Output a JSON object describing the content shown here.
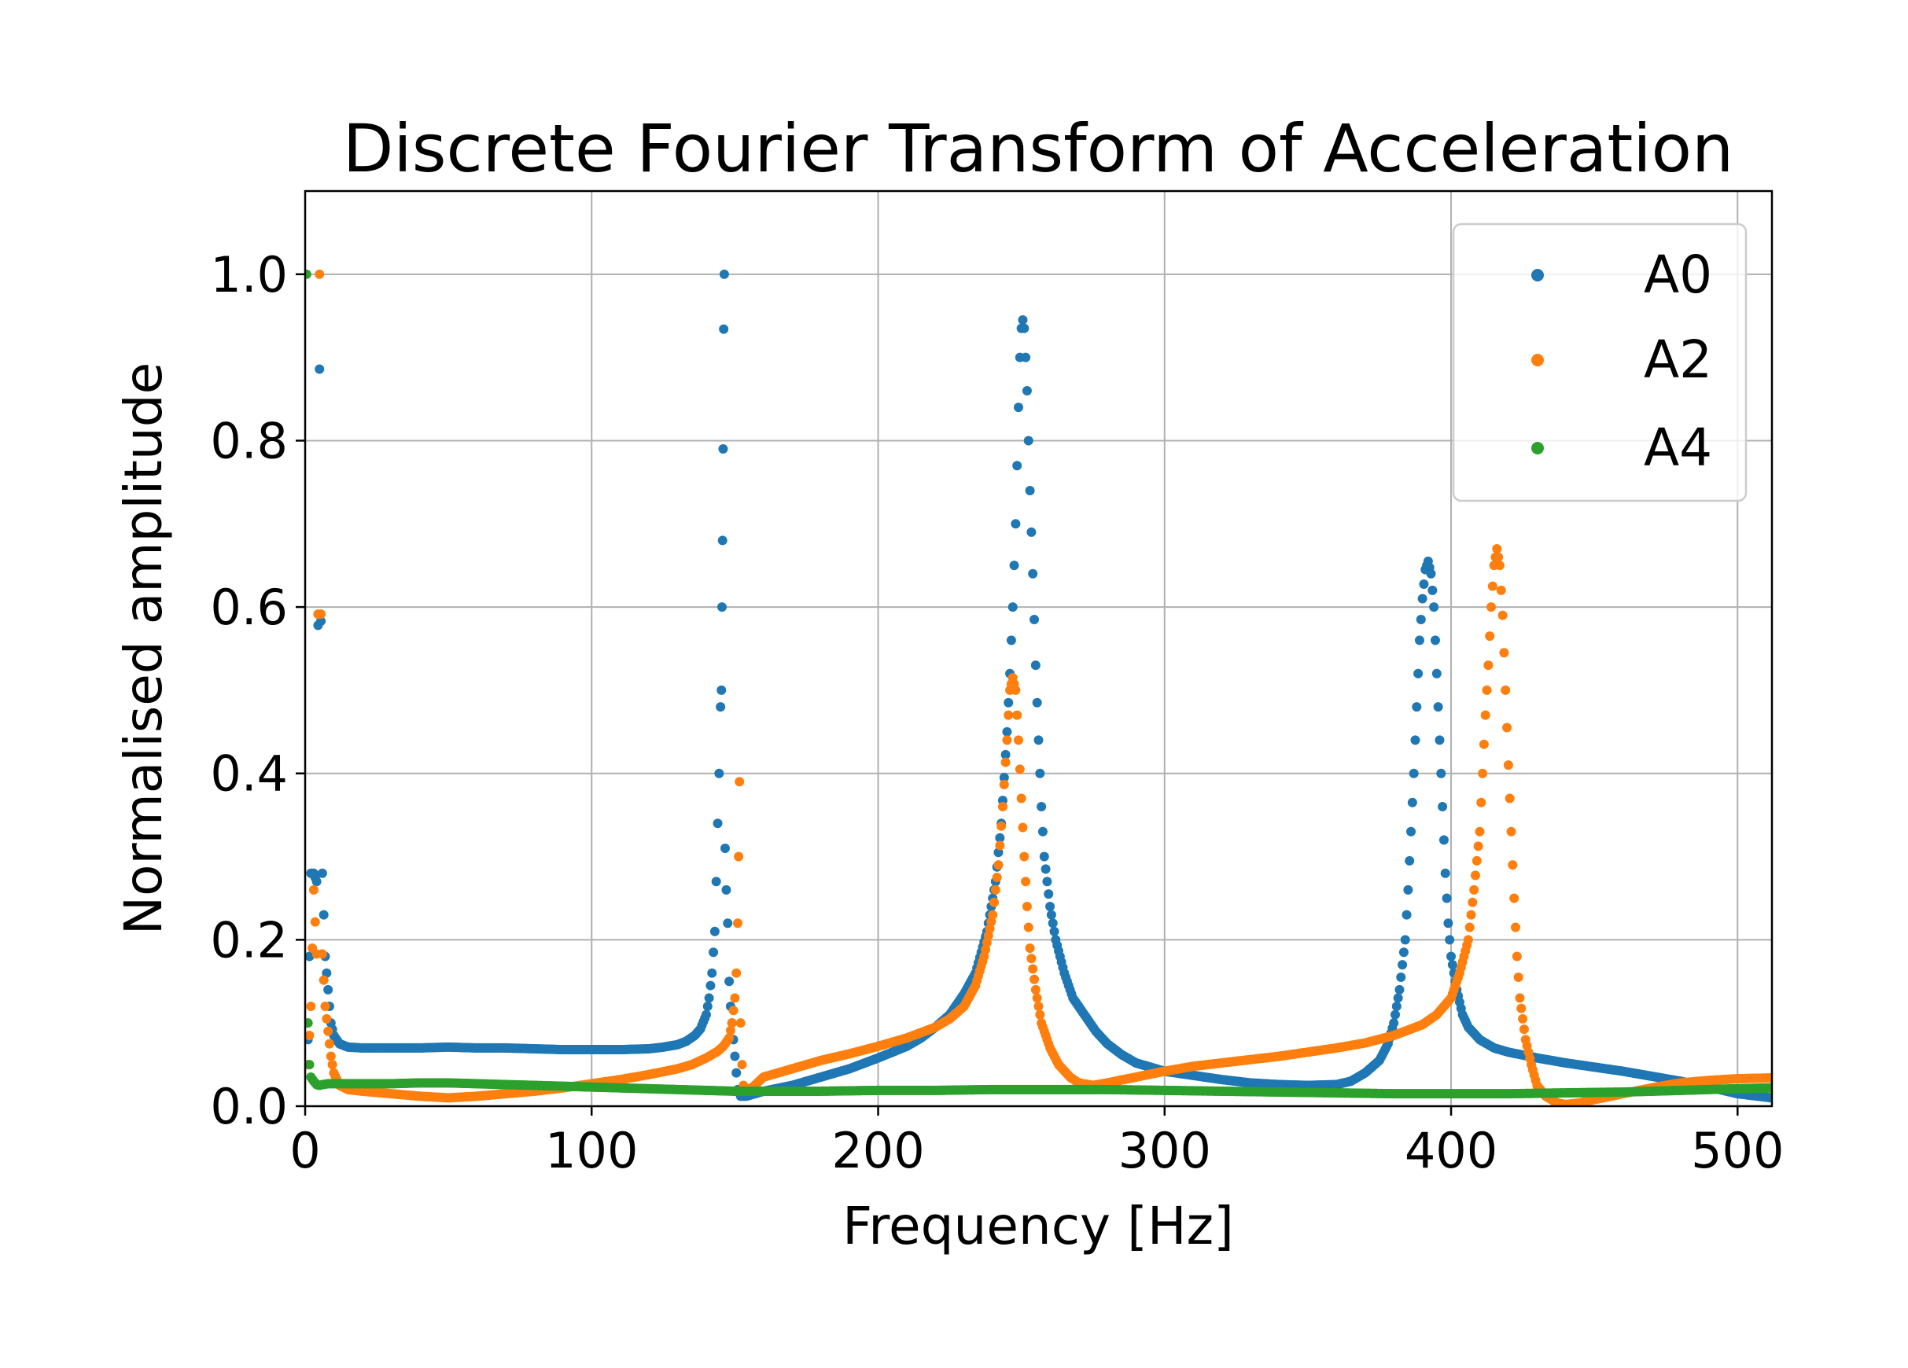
{
  "chart_data": {
    "type": "scatter",
    "title": "Discrete Fourier Transform of Acceleration",
    "xlabel": "Frequency [Hz]",
    "ylabel": "Normalised amplitude",
    "xlim": [
      0,
      512
    ],
    "ylim": [
      0,
      1.1
    ],
    "x_ticks": [
      0,
      100,
      200,
      300,
      400,
      500
    ],
    "x_tick_labels": [
      "0",
      "100",
      "200",
      "300",
      "400",
      "500"
    ],
    "y_ticks": [
      0,
      0.2,
      0.4,
      0.6,
      0.8,
      1.0
    ],
    "y_tick_labels": [
      "0.0",
      "0.2",
      "0.4",
      "0.6",
      "0.8",
      "1.0"
    ],
    "grid": true,
    "legend_position": "top-right",
    "series": [
      {
        "name": "A0",
        "color": "#1f77b4",
        "points": [
          [
            1,
            0.08
          ],
          [
            2,
            0.28
          ],
          [
            3,
            0.28
          ],
          [
            4,
            0.27
          ],
          [
            5,
            0.886
          ],
          [
            6,
            0.28
          ],
          [
            7,
            0.18
          ],
          [
            8,
            0.14
          ],
          [
            9,
            0.1
          ],
          [
            10,
            0.085
          ],
          [
            12,
            0.075
          ],
          [
            15,
            0.071
          ],
          [
            20,
            0.07
          ],
          [
            30,
            0.07
          ],
          [
            40,
            0.07
          ],
          [
            50,
            0.071
          ],
          [
            60,
            0.07
          ],
          [
            70,
            0.07
          ],
          [
            80,
            0.069
          ],
          [
            90,
            0.068
          ],
          [
            100,
            0.068
          ],
          [
            110,
            0.068
          ],
          [
            120,
            0.069
          ],
          [
            125,
            0.071
          ],
          [
            130,
            0.074
          ],
          [
            133,
            0.078
          ],
          [
            136,
            0.085
          ],
          [
            138,
            0.093
          ],
          [
            140,
            0.11
          ],
          [
            141,
            0.13
          ],
          [
            142,
            0.16
          ],
          [
            143,
            0.21
          ],
          [
            143.5,
            0.27
          ],
          [
            144,
            0.34
          ],
          [
            144.5,
            0.4
          ],
          [
            145,
            0.48
          ],
          [
            145.3,
            0.5
          ],
          [
            145.5,
            0.6
          ],
          [
            145.7,
            0.68
          ],
          [
            145.9,
            0.79
          ],
          [
            146.1,
            0.934
          ],
          [
            146.3,
            1.0
          ],
          [
            146.6,
            0.31
          ],
          [
            147,
            0.26
          ],
          [
            147.5,
            0.22
          ],
          [
            148,
            0.15
          ],
          [
            148.5,
            0.12
          ],
          [
            149,
            0.1
          ],
          [
            149.5,
            0.08
          ],
          [
            150,
            0.06
          ],
          [
            150.5,
            0.04
          ],
          [
            151,
            0.02
          ],
          [
            152,
            0.012
          ],
          [
            154,
            0.012
          ],
          [
            160,
            0.018
          ],
          [
            170,
            0.025
          ],
          [
            180,
            0.035
          ],
          [
            190,
            0.045
          ],
          [
            200,
            0.058
          ],
          [
            210,
            0.072
          ],
          [
            215,
            0.082
          ],
          [
            220,
            0.095
          ],
          [
            225,
            0.11
          ],
          [
            230,
            0.135
          ],
          [
            234,
            0.16
          ],
          [
            238,
            0.21
          ],
          [
            241,
            0.27
          ],
          [
            243,
            0.34
          ],
          [
            245,
            0.45
          ],
          [
            246,
            0.52
          ],
          [
            247,
            0.6
          ],
          [
            248,
            0.7
          ],
          [
            248.5,
            0.77
          ],
          [
            249,
            0.84
          ],
          [
            249.5,
            0.9
          ],
          [
            250,
            0.935
          ],
          [
            250.5,
            0.945
          ],
          [
            251,
            0.935
          ],
          [
            251.5,
            0.9
          ],
          [
            252,
            0.86
          ],
          [
            252.5,
            0.8
          ],
          [
            253,
            0.74
          ],
          [
            254,
            0.64
          ],
          [
            255,
            0.53
          ],
          [
            256,
            0.44
          ],
          [
            257,
            0.36
          ],
          [
            258,
            0.3
          ],
          [
            260,
            0.24
          ],
          [
            262,
            0.2
          ],
          [
            265,
            0.16
          ],
          [
            268,
            0.13
          ],
          [
            272,
            0.11
          ],
          [
            276,
            0.09
          ],
          [
            280,
            0.075
          ],
          [
            285,
            0.062
          ],
          [
            290,
            0.052
          ],
          [
            300,
            0.042
          ],
          [
            310,
            0.037
          ],
          [
            320,
            0.032
          ],
          [
            330,
            0.028
          ],
          [
            340,
            0.026
          ],
          [
            350,
            0.025
          ],
          [
            360,
            0.026
          ],
          [
            365,
            0.03
          ],
          [
            370,
            0.04
          ],
          [
            375,
            0.055
          ],
          [
            378,
            0.075
          ],
          [
            380,
            0.1
          ],
          [
            382,
            0.14
          ],
          [
            384,
            0.2
          ],
          [
            385,
            0.26
          ],
          [
            386,
            0.33
          ],
          [
            387,
            0.4
          ],
          [
            388,
            0.48
          ],
          [
            389,
            0.56
          ],
          [
            390,
            0.61
          ],
          [
            391,
            0.645
          ],
          [
            392,
            0.655
          ],
          [
            393,
            0.64
          ],
          [
            394,
            0.6
          ],
          [
            395,
            0.52
          ],
          [
            396,
            0.44
          ],
          [
            397,
            0.36
          ],
          [
            398,
            0.28
          ],
          [
            399,
            0.22
          ],
          [
            400,
            0.18
          ],
          [
            402,
            0.14
          ],
          [
            404,
            0.11
          ],
          [
            406,
            0.095
          ],
          [
            410,
            0.08
          ],
          [
            415,
            0.07
          ],
          [
            420,
            0.065
          ],
          [
            430,
            0.058
          ],
          [
            440,
            0.052
          ],
          [
            450,
            0.047
          ],
          [
            460,
            0.042
          ],
          [
            470,
            0.036
          ],
          [
            480,
            0.03
          ],
          [
            490,
            0.023
          ],
          [
            500,
            0.015
          ],
          [
            512,
            0.01
          ]
        ]
      },
      {
        "name": "A2",
        "color": "#ff7f0e",
        "points": [
          [
            1,
            0.05
          ],
          [
            2,
            0.12
          ],
          [
            3,
            0.26
          ],
          [
            4,
            0.183
          ],
          [
            5,
            1.0
          ],
          [
            6,
            0.183
          ],
          [
            7,
            0.12
          ],
          [
            8,
            0.09
          ],
          [
            9,
            0.06
          ],
          [
            10,
            0.04
          ],
          [
            12,
            0.025
          ],
          [
            15,
            0.02
          ],
          [
            20,
            0.018
          ],
          [
            30,
            0.015
          ],
          [
            40,
            0.012
          ],
          [
            50,
            0.01
          ],
          [
            60,
            0.012
          ],
          [
            70,
            0.015
          ],
          [
            80,
            0.018
          ],
          [
            90,
            0.022
          ],
          [
            100,
            0.027
          ],
          [
            110,
            0.032
          ],
          [
            120,
            0.038
          ],
          [
            130,
            0.045
          ],
          [
            135,
            0.05
          ],
          [
            140,
            0.058
          ],
          [
            144,
            0.066
          ],
          [
            146,
            0.072
          ],
          [
            148,
            0.082
          ],
          [
            149,
            0.1
          ],
          [
            150,
            0.13
          ],
          [
            150.5,
            0.16
          ],
          [
            151,
            0.22
          ],
          [
            151.3,
            0.3
          ],
          [
            151.6,
            0.39
          ],
          [
            152,
            0.1
          ],
          [
            152.5,
            0.05
          ],
          [
            153,
            0.025
          ],
          [
            154,
            0.02
          ],
          [
            156,
            0.022
          ],
          [
            160,
            0.035
          ],
          [
            170,
            0.045
          ],
          [
            180,
            0.055
          ],
          [
            190,
            0.063
          ],
          [
            200,
            0.072
          ],
          [
            210,
            0.082
          ],
          [
            220,
            0.095
          ],
          [
            225,
            0.105
          ],
          [
            230,
            0.12
          ],
          [
            234,
            0.145
          ],
          [
            237,
            0.18
          ],
          [
            240,
            0.23
          ],
          [
            242,
            0.29
          ],
          [
            243.5,
            0.36
          ],
          [
            245,
            0.44
          ],
          [
            246,
            0.5
          ],
          [
            247,
            0.515
          ],
          [
            248,
            0.5
          ],
          [
            249,
            0.44
          ],
          [
            250,
            0.37
          ],
          [
            251,
            0.3
          ],
          [
            252,
            0.24
          ],
          [
            253,
            0.19
          ],
          [
            255,
            0.14
          ],
          [
            257,
            0.1
          ],
          [
            260,
            0.07
          ],
          [
            263,
            0.05
          ],
          [
            267,
            0.035
          ],
          [
            270,
            0.028
          ],
          [
            275,
            0.025
          ],
          [
            280,
            0.028
          ],
          [
            290,
            0.035
          ],
          [
            300,
            0.042
          ],
          [
            310,
            0.048
          ],
          [
            320,
            0.052
          ],
          [
            330,
            0.056
          ],
          [
            340,
            0.06
          ],
          [
            350,
            0.065
          ],
          [
            360,
            0.07
          ],
          [
            370,
            0.076
          ],
          [
            380,
            0.085
          ],
          [
            390,
            0.098
          ],
          [
            395,
            0.11
          ],
          [
            400,
            0.13
          ],
          [
            403,
            0.16
          ],
          [
            406,
            0.2
          ],
          [
            408,
            0.26
          ],
          [
            410,
            0.33
          ],
          [
            411,
            0.4
          ],
          [
            412,
            0.47
          ],
          [
            413,
            0.53
          ],
          [
            414,
            0.6
          ],
          [
            415,
            0.65
          ],
          [
            416,
            0.67
          ],
          [
            417,
            0.65
          ],
          [
            418,
            0.59
          ],
          [
            419,
            0.5
          ],
          [
            420,
            0.41
          ],
          [
            421,
            0.33
          ],
          [
            422,
            0.25
          ],
          [
            423,
            0.18
          ],
          [
            424,
            0.13
          ],
          [
            426,
            0.08
          ],
          [
            428,
            0.05
          ],
          [
            430,
            0.025
          ],
          [
            433,
            0.012
          ],
          [
            437,
            0.004
          ],
          [
            440,
            0.002
          ],
          [
            445,
            0.004
          ],
          [
            450,
            0.008
          ],
          [
            460,
            0.015
          ],
          [
            470,
            0.022
          ],
          [
            480,
            0.028
          ],
          [
            490,
            0.031
          ],
          [
            500,
            0.033
          ],
          [
            512,
            0.034
          ]
        ]
      },
      {
        "name": "A4",
        "color": "#2ca02c",
        "points": [
          [
            0.5,
            1.0
          ],
          [
            1,
            0.1
          ],
          [
            1.5,
            0.05
          ],
          [
            2,
            0.035
          ],
          [
            3,
            0.03
          ],
          [
            4,
            0.026
          ],
          [
            5,
            0.025
          ],
          [
            6,
            0.026
          ],
          [
            8,
            0.027
          ],
          [
            10,
            0.027
          ],
          [
            20,
            0.027
          ],
          [
            30,
            0.027
          ],
          [
            40,
            0.028
          ],
          [
            50,
            0.028
          ],
          [
            60,
            0.027
          ],
          [
            70,
            0.026
          ],
          [
            80,
            0.025
          ],
          [
            90,
            0.024
          ],
          [
            100,
            0.023
          ],
          [
            110,
            0.022
          ],
          [
            120,
            0.021
          ],
          [
            130,
            0.02
          ],
          [
            140,
            0.019
          ],
          [
            150,
            0.018
          ],
          [
            160,
            0.018
          ],
          [
            180,
            0.018
          ],
          [
            200,
            0.019
          ],
          [
            220,
            0.019
          ],
          [
            240,
            0.02
          ],
          [
            260,
            0.02
          ],
          [
            280,
            0.02
          ],
          [
            300,
            0.019
          ],
          [
            320,
            0.018
          ],
          [
            340,
            0.017
          ],
          [
            360,
            0.016
          ],
          [
            380,
            0.015
          ],
          [
            400,
            0.015
          ],
          [
            420,
            0.015
          ],
          [
            440,
            0.016
          ],
          [
            460,
            0.017
          ],
          [
            480,
            0.019
          ],
          [
            500,
            0.021
          ],
          [
            512,
            0.022
          ]
        ]
      }
    ]
  }
}
